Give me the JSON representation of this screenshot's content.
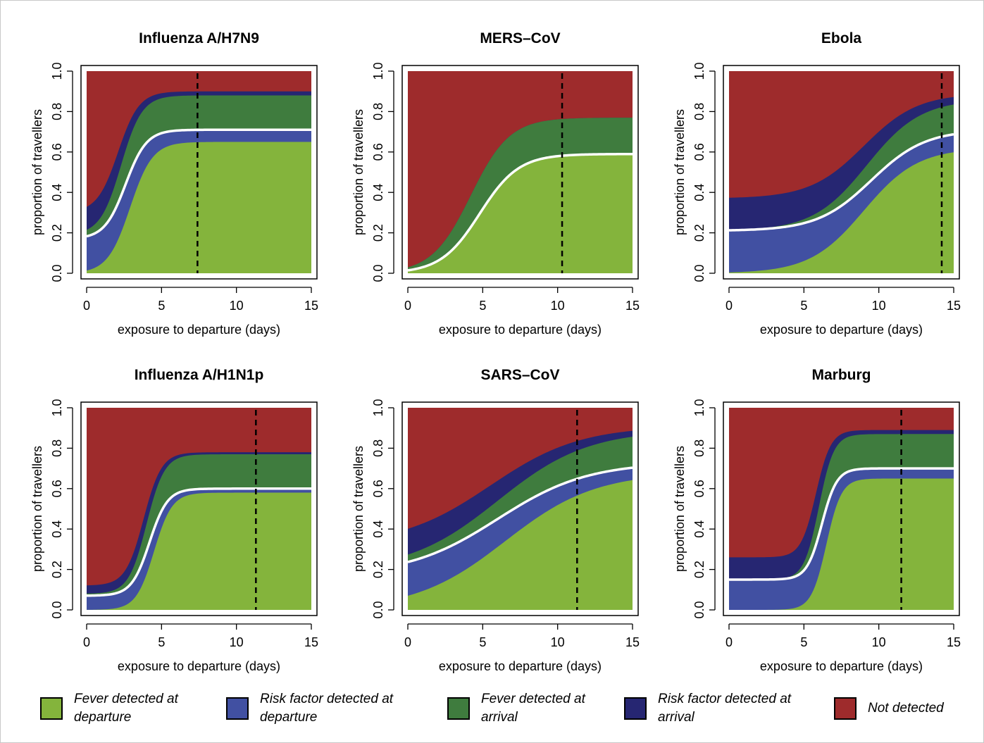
{
  "colors": {
    "fever_departure": "#84b43c",
    "risk_departure": "#4150a2",
    "fever_arrival": "#3f7c3e",
    "risk_arrival": "#262672",
    "not_detected": "#9e2b2c"
  },
  "chart_data": [
    {
      "type": "area",
      "title": "Influenza A/H7N9",
      "xlabel": "exposure to departure (days)",
      "ylabel": "proportion of travellers",
      "xlim": [
        0,
        15
      ],
      "ylim": [
        0,
        1
      ],
      "xticks": [
        "0",
        "5",
        "10",
        "15"
      ],
      "yticks": [
        "0.0",
        "0.2",
        "0.4",
        "0.6",
        "0.8",
        "1.0"
      ],
      "stacked_boundaries": {
        "fever_departure": {
          "start": 0.0,
          "end": 0.65,
          "mid": 2.9,
          "width": 0.75
        },
        "risk_departure": {
          "start": 0.17,
          "end": 0.71,
          "mid": 2.6,
          "width": 0.7
        },
        "fever_arrival": {
          "start": 0.19,
          "end": 0.88,
          "mid": 2.3,
          "width": 0.7
        },
        "risk_arrival": {
          "start": 0.3,
          "end": 0.9,
          "mid": 2.1,
          "width": 0.7
        }
      },
      "departure_line_curve": "risk_departure",
      "dashed_line_x": 7.4
    },
    {
      "type": "area",
      "title": "MERS–CoV",
      "xlabel": "exposure to departure (days)",
      "ylabel": "proportion of travellers",
      "xlim": [
        0,
        15
      ],
      "ylim": [
        0,
        1
      ],
      "xticks": [
        "0",
        "5",
        "10",
        "15"
      ],
      "yticks": [
        "0.0",
        "0.2",
        "0.4",
        "0.6",
        "0.8",
        "1.0"
      ],
      "stacked_boundaries": {
        "fever_departure": {
          "start": 0.0,
          "end": 0.59,
          "mid": 4.8,
          "width": 1.3
        },
        "risk_departure": {
          "start": 0.0,
          "end": 0.59,
          "mid": 4.8,
          "width": 1.3
        },
        "fever_arrival": {
          "start": 0.0,
          "end": 0.77,
          "mid": 4.2,
          "width": 1.3
        },
        "risk_arrival": {
          "start": 0.0,
          "end": 0.77,
          "mid": 4.2,
          "width": 1.3
        }
      },
      "departure_line_curve": "risk_departure",
      "dashed_line_x": 10.3
    },
    {
      "type": "area",
      "title": "Ebola",
      "xlabel": "exposure to departure (days)",
      "ylabel": "proportion of travellers",
      "xlim": [
        0,
        15
      ],
      "ylim": [
        0,
        1
      ],
      "xticks": [
        "0",
        "5",
        "10",
        "15"
      ],
      "yticks": [
        "0.0",
        "0.2",
        "0.4",
        "0.6",
        "0.8",
        "1.0"
      ],
      "stacked_boundaries": {
        "fever_departure": {
          "start": 0.0,
          "end": 0.62,
          "mid": 9.0,
          "width": 1.8
        },
        "risk_departure": {
          "start": 0.21,
          "end": 0.71,
          "mid": 9.5,
          "width": 1.8
        },
        "fever_arrival": {
          "start": 0.21,
          "end": 0.86,
          "mid": 9.2,
          "width": 1.8
        },
        "risk_arrival": {
          "start": 0.37,
          "end": 0.89,
          "mid": 9.0,
          "width": 1.8
        }
      },
      "departure_line_curve": "risk_departure",
      "dashed_line_x": 14.2
    },
    {
      "type": "area",
      "title": "Influenza A/H1N1p",
      "xlabel": "exposure to departure (days)",
      "ylabel": "proportion of travellers",
      "xlim": [
        0,
        15
      ],
      "ylim": [
        0,
        1
      ],
      "xticks": [
        "0",
        "5",
        "10",
        "15"
      ],
      "yticks": [
        "0.0",
        "0.2",
        "0.4",
        "0.6",
        "0.8",
        "1.0"
      ],
      "stacked_boundaries": {
        "fever_departure": {
          "start": 0.0,
          "end": 0.58,
          "mid": 4.5,
          "width": 0.6
        },
        "risk_departure": {
          "start": 0.07,
          "end": 0.6,
          "mid": 4.2,
          "width": 0.6
        },
        "fever_arrival": {
          "start": 0.08,
          "end": 0.77,
          "mid": 4.0,
          "width": 0.6
        },
        "risk_arrival": {
          "start": 0.12,
          "end": 0.78,
          "mid": 3.8,
          "width": 0.6
        }
      },
      "departure_line_curve": "risk_departure",
      "dashed_line_x": 11.3
    },
    {
      "type": "area",
      "title": "SARS–CoV",
      "xlabel": "exposure to departure (days)",
      "ylabel": "proportion of travellers",
      "xlim": [
        0,
        15
      ],
      "ylim": [
        0,
        1
      ],
      "xticks": [
        "0",
        "5",
        "10",
        "15"
      ],
      "yticks": [
        "0.0",
        "0.2",
        "0.4",
        "0.6",
        "0.8",
        "1.0"
      ],
      "stacked_boundaries": {
        "fever_departure": {
          "start": 0.0,
          "end": 0.68,
          "mid": 6.5,
          "width": 3.0
        },
        "risk_departure": {
          "start": 0.17,
          "end": 0.73,
          "mid": 6.0,
          "width": 3.0
        },
        "fever_arrival": {
          "start": 0.19,
          "end": 0.89,
          "mid": 6.0,
          "width": 3.0
        },
        "risk_arrival": {
          "start": 0.32,
          "end": 0.91,
          "mid": 5.5,
          "width": 3.0
        }
      },
      "departure_line_curve": "risk_departure",
      "dashed_line_x": 11.3
    },
    {
      "type": "area",
      "title": "Marburg",
      "xlabel": "exposure to departure (days)",
      "ylabel": "proportion of travellers",
      "xlim": [
        0,
        15
      ],
      "ylim": [
        0,
        1
      ],
      "xticks": [
        "0",
        "5",
        "10",
        "15"
      ],
      "yticks": [
        "0.0",
        "0.2",
        "0.4",
        "0.6",
        "0.8",
        "1.0"
      ],
      "stacked_boundaries": {
        "fever_departure": {
          "start": 0.0,
          "end": 0.65,
          "mid": 6.5,
          "width": 0.5
        },
        "risk_departure": {
          "start": 0.15,
          "end": 0.7,
          "mid": 6.2,
          "width": 0.5
        },
        "fever_arrival": {
          "start": 0.15,
          "end": 0.87,
          "mid": 6.0,
          "width": 0.5
        },
        "risk_arrival": {
          "start": 0.26,
          "end": 0.89,
          "mid": 5.8,
          "width": 0.5
        }
      },
      "departure_line_curve": "risk_departure",
      "dashed_line_x": 11.5
    }
  ],
  "legend": [
    {
      "key": "fever_departure",
      "label": "Fever detected at departure"
    },
    {
      "key": "risk_departure",
      "label": "Risk factor detected at departure"
    },
    {
      "key": "fever_arrival",
      "label": "Fever detected at arrival"
    },
    {
      "key": "risk_arrival",
      "label": "Risk factor detected at arrival"
    },
    {
      "key": "not_detected",
      "label": "Not detected"
    }
  ]
}
